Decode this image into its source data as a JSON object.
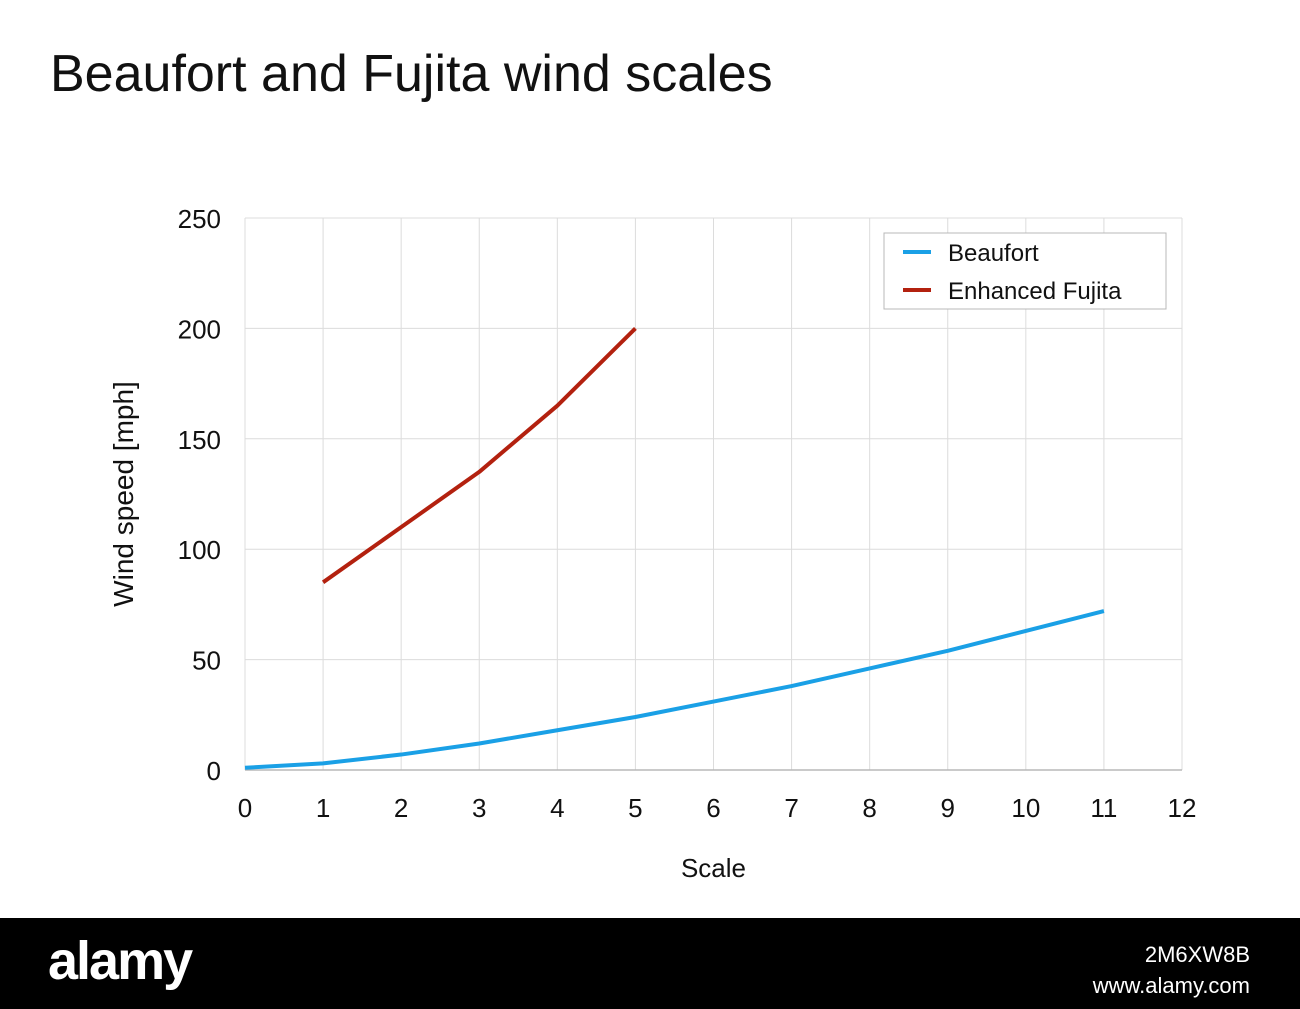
{
  "chart_data": {
    "type": "line",
    "title": "Beaufort and Fujita wind scales",
    "xlabel": "Scale",
    "ylabel": "Wind speed [mph]",
    "xlim": [
      0,
      12
    ],
    "ylim": [
      0,
      250
    ],
    "x_ticks": [
      "0",
      "1",
      "2",
      "3",
      "4",
      "5",
      "6",
      "7",
      "8",
      "9",
      "10",
      "11",
      "12"
    ],
    "y_ticks": [
      "0",
      "50",
      "100",
      "150",
      "200",
      "250"
    ],
    "grid": true,
    "legend_position": "top-right",
    "series": [
      {
        "name": "Beaufort",
        "color": "#1aa0e6",
        "x": [
          0,
          1,
          2,
          3,
          4,
          5,
          6,
          7,
          8,
          9,
          10,
          11
        ],
        "y": [
          1,
          3,
          7,
          12,
          18,
          24,
          31,
          38,
          46,
          54,
          63,
          72
        ]
      },
      {
        "name": "Enhanced Fujita",
        "color": "#b3210f",
        "x": [
          1,
          2,
          3,
          4,
          5
        ],
        "y": [
          85,
          110,
          135,
          165,
          200
        ]
      }
    ]
  },
  "footer": {
    "brand": "alamy",
    "image_id": "2M6XW8B",
    "url": "www.alamy.com"
  }
}
